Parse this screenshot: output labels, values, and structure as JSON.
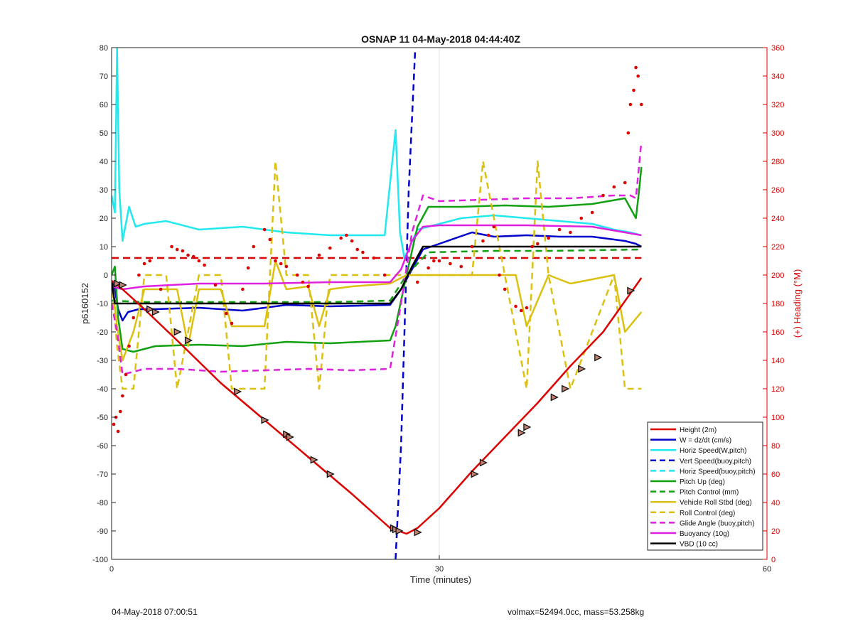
{
  "chart_data": {
    "type": "line",
    "title": "OSNAP 11 04-May-2018 04:44:40Z",
    "xlabel": "Time (minutes)",
    "ylabel_left": "p6160152",
    "ylabel_right": "(+) Heading (°M)",
    "xlim": [
      0,
      60
    ],
    "ylim_left": [
      -100,
      80
    ],
    "ylim_right": [
      0,
      360
    ],
    "x_ticks": [
      0,
      30,
      60
    ],
    "y_ticks_left": [
      -100,
      -90,
      -80,
      -70,
      -60,
      -50,
      -40,
      -30,
      -20,
      -10,
      0,
      10,
      20,
      30,
      40,
      50,
      60,
      70,
      80
    ],
    "y_ticks_right": [
      0,
      20,
      40,
      60,
      80,
      100,
      120,
      140,
      160,
      180,
      200,
      220,
      240,
      260,
      280,
      300,
      320,
      340,
      360
    ],
    "grid": "x-only",
    "legend_position": "bottom-right",
    "series": [
      {
        "name": "Height (2m)",
        "color": "#dd0000",
        "style": "solid",
        "x": [
          0,
          1,
          3,
          6,
          10,
          14,
          18,
          22,
          25.5,
          27,
          28,
          30,
          33,
          36,
          39,
          42,
          45,
          48.5
        ],
        "y": [
          -2,
          -5,
          -12,
          -23,
          -38,
          -51,
          -64,
          -77,
          -89,
          -91,
          -89,
          -82,
          -69,
          -57,
          -45,
          -32,
          -20,
          -1
        ]
      },
      {
        "name": "W = dz/dt (cm/s)",
        "color": "#0000cc",
        "style": "solid",
        "x": [
          0,
          0.3,
          0.6,
          1,
          1.5,
          2.5,
          4,
          8,
          12,
          16,
          20,
          25.5,
          26.5,
          27.5,
          28.5,
          30,
          33,
          35,
          38,
          41,
          44,
          47,
          48,
          48.5
        ],
        "y": [
          -2,
          -5,
          -12,
          -16,
          -13,
          -12,
          -12,
          -11.5,
          -12.5,
          -10.5,
          -11,
          -10.5,
          -5,
          2,
          9,
          11,
          15,
          13.5,
          14,
          13.5,
          13.5,
          12,
          11,
          10
        ]
      },
      {
        "name": "Horiz Speed(W,pitch)",
        "color": "#22e8f0",
        "style": "solid",
        "x": [
          0,
          0.3,
          0.5,
          0.7,
          1,
          1.6,
          2.2,
          3,
          5,
          8,
          12,
          16,
          20,
          25,
          25.7,
          26,
          26.4,
          26.8,
          27.3,
          28,
          29,
          32,
          35,
          38,
          41,
          44,
          46,
          47.5,
          48.5
        ],
        "y": [
          28,
          22,
          80,
          30,
          12,
          24,
          17,
          18,
          19,
          16,
          17,
          15,
          14,
          14,
          40,
          51,
          15,
          6,
          10,
          16,
          17,
          20,
          21,
          20,
          19,
          18,
          16,
          15,
          14
        ]
      },
      {
        "name": "Vert Speed(buoy,pitch)",
        "color": "#0000cc",
        "style": "dashed",
        "x": [
          26,
          26.5,
          27.2,
          27.8
        ],
        "y": [
          -100,
          -60,
          30,
          80
        ]
      },
      {
        "name": "Horiz Speed(buoy,pitch)",
        "color": "#22e8f0",
        "style": "dashed",
        "x": [],
        "y": []
      },
      {
        "name": "Pitch Up (deg)",
        "color": "#11a011",
        "style": "solid",
        "x": [
          0,
          0.3,
          0.6,
          1,
          2,
          4,
          8,
          12,
          16,
          20,
          25.5,
          26,
          27,
          28,
          29,
          32,
          36,
          40,
          44,
          47,
          48,
          48.3,
          48.5
        ],
        "y": [
          0,
          3,
          -15,
          -26,
          -27,
          -25,
          -24.5,
          -25,
          -23.5,
          -24,
          -23,
          -18,
          0,
          17,
          24,
          24,
          24.5,
          24,
          25,
          27,
          20,
          30,
          38
        ]
      },
      {
        "name": "Pitch Control (mm)",
        "color": "#11a011",
        "style": "dashed",
        "x": [
          0,
          3,
          10,
          20,
          25.5,
          27,
          29,
          35,
          40,
          48.5
        ],
        "y": [
          -9,
          -9.5,
          -9.5,
          -9.5,
          -9,
          0,
          8,
          8.5,
          8.5,
          9
        ]
      },
      {
        "name": "Vehicle Roll Stbd (deg)",
        "color": "#dcc010",
        "style": "solid",
        "x": [
          0,
          0.5,
          1,
          2,
          3,
          6,
          7,
          8,
          10,
          11,
          14,
          15,
          16,
          18,
          19,
          20,
          22,
          25.5,
          27,
          28.5,
          30,
          33,
          35,
          37,
          38,
          40,
          42,
          46,
          47,
          48.5
        ],
        "y": [
          -2,
          -18,
          -30,
          -20,
          -5,
          -5,
          -25,
          -5,
          -5,
          -18,
          -18,
          5,
          -5,
          -4,
          -18,
          -5,
          -4,
          -3,
          0,
          0,
          0,
          0,
          0,
          0,
          -18,
          0,
          -3,
          0,
          -20,
          -13
        ]
      },
      {
        "name": "Roll Control (deg)",
        "color": "#dcc010",
        "style": "dashed",
        "x": [
          0,
          0.5,
          1,
          2,
          3,
          5,
          6,
          8,
          10,
          11,
          14,
          15,
          16,
          18,
          19,
          20,
          22,
          25.5,
          27,
          30,
          33,
          34,
          36,
          38,
          39,
          40,
          42,
          46,
          47,
          48.5
        ],
        "y": [
          -2,
          -25,
          -40,
          -40,
          0,
          0,
          -40,
          0,
          0,
          -40,
          -40,
          40,
          0,
          0,
          -40,
          0,
          0,
          0,
          0,
          0,
          0,
          40,
          0,
          -40,
          40,
          0,
          -40,
          0,
          -40,
          -40
        ]
      },
      {
        "name": "Glide Angle (buoy,pitch)",
        "color": "#e020e0",
        "style": "dashed",
        "x": [
          0,
          0.5,
          1,
          2,
          3,
          6,
          10,
          14,
          18,
          22,
          25.5,
          26.5,
          27.5,
          28.5,
          30,
          34,
          38,
          42,
          46,
          47.5,
          48,
          48.5
        ],
        "y": [
          -10,
          -20,
          -35,
          -34,
          -33,
          -33,
          -34,
          -33.5,
          -33,
          -33.5,
          -33,
          -10,
          15,
          28,
          26,
          26.5,
          27,
          27,
          28,
          28,
          27,
          47
        ]
      },
      {
        "name": "Buoyancy (10g)",
        "color": "#e020e0",
        "style": "solid",
        "x": [
          0,
          1,
          3,
          8,
          14,
          20,
          25.5,
          26.5,
          27.5,
          28.5,
          30,
          38,
          44,
          47,
          48.5
        ],
        "y": [
          -4,
          -5,
          -4,
          -3,
          -3,
          -2.5,
          -2.5,
          2,
          12,
          17,
          17.5,
          17.5,
          17,
          15,
          14
        ]
      },
      {
        "name": "VBD (10 cc)",
        "color": "#000000",
        "style": "solid",
        "x": [
          0,
          0.3,
          1,
          10,
          20,
          25.5,
          26.5,
          27.5,
          28.5,
          48.5
        ],
        "y": [
          -2,
          -10,
          -10,
          -10,
          -10,
          -10,
          -5,
          3,
          10,
          10
        ]
      }
    ],
    "reference_lines": [
      {
        "axis": "right",
        "value": 212,
        "color": "#dd0000",
        "style": "dashed",
        "x_range": [
          0,
          48.5
        ]
      }
    ],
    "heading_points": {
      "axis": "right",
      "color": "#dd0000",
      "x": [
        0.2,
        0.4,
        0.6,
        0.8,
        1.0,
        1.3,
        1.6,
        2.0,
        2.5,
        3.0,
        3.5,
        4.5,
        5.5,
        6.0,
        6.5,
        7.0,
        7.5,
        8.0,
        8.5,
        9.5,
        10.5,
        11.0,
        12.0,
        12.5,
        13.0,
        14.0,
        14.5,
        15.0,
        15.5,
        16.0,
        17.0,
        17.5,
        18.0,
        19.0,
        20.0,
        21.0,
        21.5,
        22.0,
        22.5,
        23.0,
        24.0,
        25.0,
        28.0,
        29.0,
        29.5,
        30.0,
        31.0,
        32.0,
        33.0,
        34.0,
        34.5,
        35.0,
        35.5,
        36.0,
        37.0,
        37.5,
        38.0,
        38.5,
        39.0,
        40.0,
        41.0,
        42.0,
        43.0,
        44.0,
        45.0,
        46.0,
        47.0,
        47.3,
        47.5,
        47.8,
        48.0,
        48.2,
        48.5
      ],
      "y": [
        95,
        100,
        90,
        104,
        115,
        130,
        150,
        170,
        200,
        208,
        210,
        190,
        220,
        218,
        217,
        214,
        213,
        210,
        207,
        193,
        173,
        166,
        190,
        205,
        220,
        232,
        225,
        210,
        208,
        206,
        200,
        195,
        192,
        214,
        219,
        226,
        228,
        224,
        218,
        216,
        212,
        200,
        195,
        205,
        210,
        210,
        208,
        206,
        220,
        224,
        228,
        234,
        200,
        190,
        178,
        175,
        177,
        220,
        222,
        226,
        232,
        230,
        240,
        244,
        256,
        262,
        265,
        300,
        320,
        330,
        346,
        340,
        320
      ]
    },
    "height_markers": {
      "x": [
        0.5,
        1.0,
        3.5,
        4.0,
        6.0,
        7.0,
        11.5,
        14.0,
        16.0,
        16.3,
        18.5,
        20.0,
        25.8,
        26.0,
        26.3,
        28.0,
        33.2,
        34.0,
        37.5,
        38.0,
        40.5,
        41.5,
        43.0,
        44.5,
        47.5
      ],
      "y": [
        -3,
        -3.5,
        -12,
        -13,
        -20,
        -23,
        -41,
        -51,
        -56,
        -57,
        -65,
        -70,
        -89,
        -89.5,
        -90,
        -90.5,
        -70,
        -66,
        -55.5,
        -53.5,
        -43,
        -40,
        -33,
        -29,
        -5.5
      ]
    },
    "legend_entries": [
      "Height (2m)",
      "W = dz/dt (cm/s)",
      "Horiz Speed(W,pitch)",
      "Vert Speed(buoy,pitch)",
      "Horiz Speed(buoy,pitch)",
      "Pitch Up (deg)",
      "Pitch Control (mm)",
      "Vehicle Roll Stbd (deg)",
      "Roll Control (deg)",
      "Glide Angle (buoy,pitch)",
      "Buoyancy (10g)",
      "VBD (10 cc)"
    ]
  },
  "footer": {
    "left": "04-May-2018 07:00:51",
    "right": "volmax=52494.0cc, mass=53.258kg"
  }
}
